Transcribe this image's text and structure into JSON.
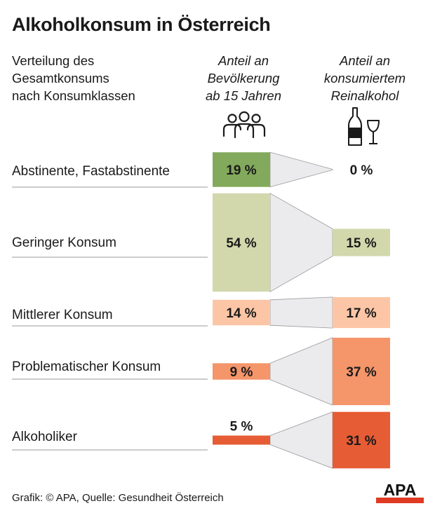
{
  "title": "Alkoholkonsum in Österreich",
  "subtitle": "Verteilung des\nGesamtkonsums\nnach Konsumklassen",
  "col_population": "Anteil an\nBevölkerung\nab 15 Jahren",
  "col_alcohol": "Anteil an\nkonsumiertem\nReinalkohol",
  "icons": {
    "population": "people-group-icon",
    "alcohol": "bottle-and-glass-icon"
  },
  "source": "Grafik: © APA, Quelle: Gesundheit Österreich",
  "logo_text": "APA",
  "colors": {
    "logo_red": "#e03a24",
    "funnel": "#ebebee",
    "divider": "#999999"
  },
  "chart_data": {
    "type": "bar",
    "categories": [
      "Abstinente, Fastabstinente",
      "Geringer Konsum",
      "Mittlerer Konsum",
      "Problematischer Konsum",
      "Alkoholiker"
    ],
    "series": [
      {
        "name": "Anteil an Bevölkerung ab 15 Jahren",
        "values": [
          19,
          54,
          14,
          9,
          5
        ],
        "labels": [
          "19 %",
          "54 %",
          "14 %",
          "9 %",
          "5 %"
        ]
      },
      {
        "name": "Anteil an konsumiertem Reinalkohol",
        "values": [
          0,
          15,
          17,
          37,
          31
        ],
        "labels": [
          "0 %",
          "15 %",
          "17 %",
          "37 %",
          "31 %"
        ]
      }
    ],
    "colors": [
      "#82a95c",
      "#d2d8ac",
      "#fcc6a6",
      "#f4956a",
      "#e65c34"
    ],
    "unit": "%"
  }
}
